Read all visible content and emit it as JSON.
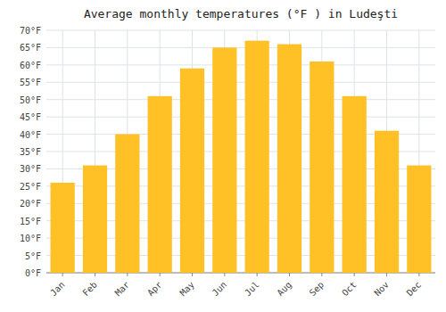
{
  "chart_data": {
    "type": "bar",
    "title": "Average monthly temperatures (°F ) in Ludeşti",
    "categories": [
      "Jan",
      "Feb",
      "Mar",
      "Apr",
      "May",
      "Jun",
      "Jul",
      "Aug",
      "Sep",
      "Oct",
      "Nov",
      "Dec"
    ],
    "values": [
      26,
      31,
      40,
      51,
      59,
      65,
      67,
      66,
      61,
      51,
      41,
      31
    ],
    "color": "#FFC125",
    "ylim": [
      0,
      70
    ],
    "yticks": [
      {
        "value": 0,
        "label": "0°F"
      },
      {
        "value": 5,
        "label": "5°F"
      },
      {
        "value": 10,
        "label": "10°F"
      },
      {
        "value": 15,
        "label": "15°F"
      },
      {
        "value": 20,
        "label": "20°F"
      },
      {
        "value": 25,
        "label": "25°F"
      },
      {
        "value": 30,
        "label": "30°F"
      },
      {
        "value": 35,
        "label": "35°F"
      },
      {
        "value": 40,
        "label": "40°F"
      },
      {
        "value": 45,
        "label": "45°F"
      },
      {
        "value": 50,
        "label": "50°F"
      },
      {
        "value": 55,
        "label": "55°F"
      },
      {
        "value": 60,
        "label": "60°F"
      },
      {
        "value": 65,
        "label": "65°F"
      },
      {
        "value": 70,
        "label": "70°F"
      }
    ],
    "grid": true
  }
}
